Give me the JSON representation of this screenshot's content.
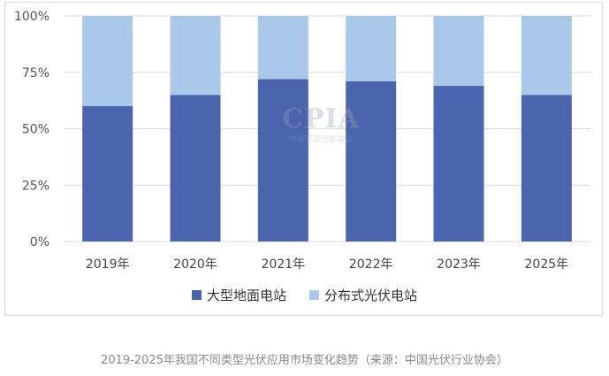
{
  "chart_data": {
    "type": "bar",
    "stacked": true,
    "categories": [
      "2019年",
      "2020年",
      "2021年",
      "2022年",
      "2023年",
      "2025年"
    ],
    "series": [
      {
        "name": "大型地面电站",
        "values": [
          60,
          65,
          72,
          71,
          69,
          65
        ],
        "color": "#4a64ad"
      },
      {
        "name": "分布式光伏电站",
        "values": [
          40,
          35,
          28,
          29,
          31,
          35
        ],
        "color": "#a9c8ea"
      }
    ],
    "ylim": [
      0,
      100
    ],
    "yticks": [
      "0%",
      "25%",
      "50%",
      "75%",
      "100%"
    ],
    "grid": true,
    "legend_position": "bottom"
  },
  "watermark": {
    "big": "CPIA",
    "small": "中国光伏行业协会"
  },
  "caption": "2019-2025年我国不同类型光伏应用市场变化趋势（来源：中国光伏行业协会）"
}
